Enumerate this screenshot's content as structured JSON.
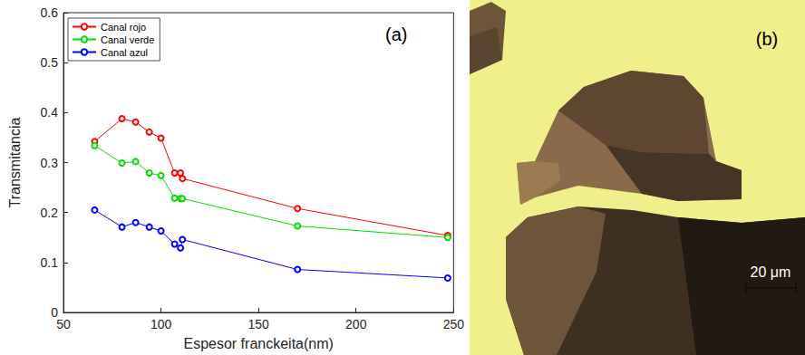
{
  "chart_data": {
    "type": "line",
    "x_label": "Espesor franckeita(nm)",
    "y_label": "Transmitancia",
    "x": [
      66,
      80,
      87,
      94,
      100,
      107,
      110,
      111,
      170,
      247
    ],
    "series": [
      {
        "name": "Canal rojo",
        "color": "#ff0000",
        "values": [
          0.342,
          0.388,
          0.381,
          0.361,
          0.349,
          0.279,
          0.279,
          0.268,
          0.208,
          0.154
        ]
      },
      {
        "name": "Canal verde",
        "color": "#00dd00",
        "values": [
          0.334,
          0.299,
          0.302,
          0.279,
          0.274,
          0.229,
          0.228,
          0.228,
          0.173,
          0.15
        ]
      },
      {
        "name": "Canal azul",
        "color": "#0000ff",
        "values": [
          0.205,
          0.171,
          0.18,
          0.171,
          0.163,
          0.137,
          0.129,
          0.146,
          0.086,
          0.069
        ]
      }
    ],
    "marker": "open circle",
    "xlim": [
      50,
      250
    ],
    "xticks": [
      50,
      100,
      150,
      200,
      250
    ],
    "ylim": [
      0,
      0.6
    ],
    "yticks": [
      0,
      0.1,
      0.2,
      0.3,
      0.4,
      0.5,
      0.6
    ],
    "legend": "upper left",
    "grid": false,
    "annotations": [
      "(a)"
    ]
  },
  "image": {
    "panel_label": "(b)",
    "scale_bar_label": "20 μm"
  }
}
